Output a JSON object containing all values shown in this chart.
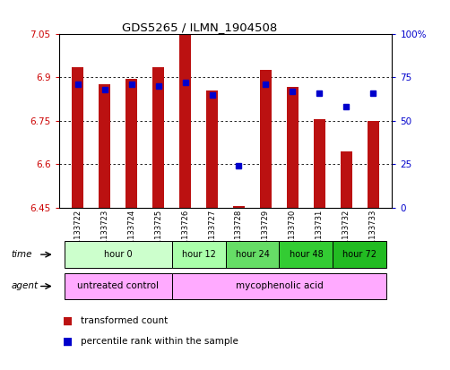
{
  "title": "GDS5265 / ILMN_1904508",
  "samples": [
    "GSM1133722",
    "GSM1133723",
    "GSM1133724",
    "GSM1133725",
    "GSM1133726",
    "GSM1133727",
    "GSM1133728",
    "GSM1133729",
    "GSM1133730",
    "GSM1133731",
    "GSM1133732",
    "GSM1133733"
  ],
  "bar_values": [
    6.935,
    6.875,
    6.895,
    6.935,
    7.045,
    6.855,
    6.455,
    6.925,
    6.865,
    6.755,
    6.645,
    6.75
  ],
  "percentile_values": [
    71,
    68,
    71,
    70,
    72,
    65,
    24,
    71,
    67,
    66,
    58,
    66
  ],
  "ylim_left": [
    6.45,
    7.05
  ],
  "ylim_right": [
    0,
    100
  ],
  "yticks_left": [
    6.45,
    6.6,
    6.75,
    6.9,
    7.05
  ],
  "ytick_labels_left": [
    "6.45",
    "6.6",
    "6.75",
    "6.9",
    "7.05"
  ],
  "yticks_right": [
    0,
    25,
    50,
    75,
    100
  ],
  "ytick_labels_right": [
    "0",
    "25",
    "50",
    "75",
    "100%"
  ],
  "bar_color": "#BB1111",
  "dot_color": "#0000CC",
  "bar_bottom": 6.45,
  "axis_color_left": "#CC0000",
  "axis_color_right": "#0000CC",
  "time_groups": [
    {
      "label": "hour 0",
      "indices": [
        0,
        1,
        2,
        3
      ],
      "color": "#ccffcc"
    },
    {
      "label": "hour 12",
      "indices": [
        4,
        5
      ],
      "color": "#aaffaa"
    },
    {
      "label": "hour 24",
      "indices": [
        6,
        7
      ],
      "color": "#66dd66"
    },
    {
      "label": "hour 48",
      "indices": [
        8,
        9
      ],
      "color": "#33cc33"
    },
    {
      "label": "hour 72",
      "indices": [
        10,
        11
      ],
      "color": "#22bb22"
    }
  ],
  "agent_groups": [
    {
      "label": "untreated control",
      "indices": [
        0,
        1,
        2,
        3
      ],
      "color": "#ffaaff"
    },
    {
      "label": "mycophenolic acid",
      "indices": [
        4,
        5,
        6,
        7,
        8,
        9,
        10,
        11
      ],
      "color": "#ffaaff"
    }
  ],
  "legend_items": [
    {
      "label": "transformed count",
      "color": "#BB1111"
    },
    {
      "label": "percentile rank within the sample",
      "color": "#0000CC"
    }
  ],
  "bg_color": "#ffffff"
}
